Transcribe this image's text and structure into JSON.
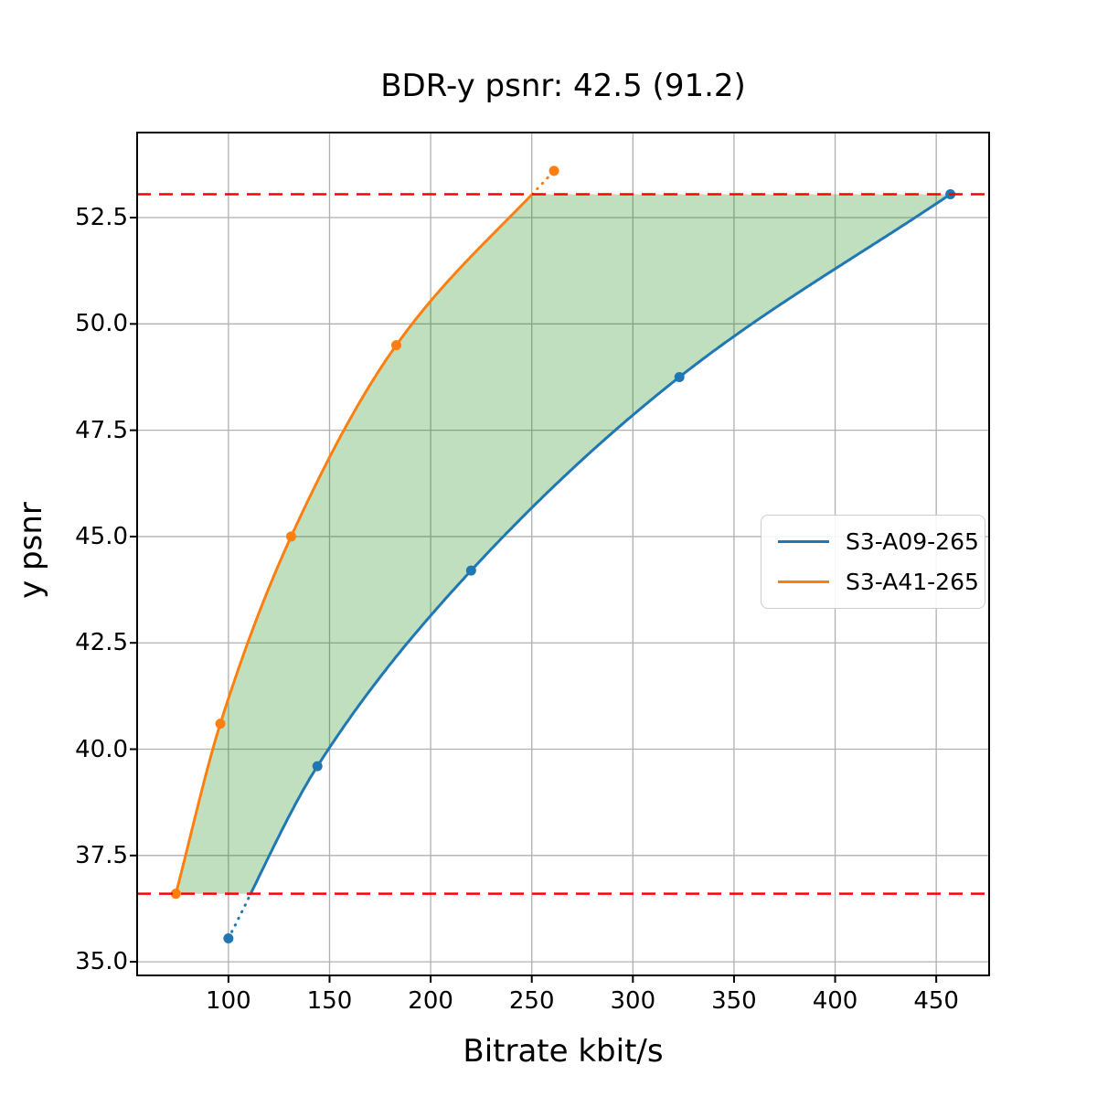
{
  "figure": {
    "title": "BDR-y psnr: 42.5 (91.2)",
    "xlabel": "Bitrate kbit/s",
    "ylabel": "y psnr"
  },
  "chart_data": {
    "type": "line",
    "title": "BDR-y psnr: 42.5 (91.2)",
    "xlabel": "Bitrate kbit/s",
    "ylabel": "y psnr",
    "xlim": [
      54.85,
      476.15
    ],
    "ylim": [
      34.68,
      54.5
    ],
    "x_ticks": [
      100,
      150,
      200,
      250,
      300,
      350,
      400,
      450
    ],
    "x_tick_labels": [
      "100",
      "150",
      "200",
      "250",
      "300",
      "350",
      "400",
      "450"
    ],
    "y_ticks": [
      35.0,
      37.5,
      40.0,
      42.5,
      45.0,
      47.5,
      50.0,
      52.5
    ],
    "y_tick_labels": [
      "35.0",
      "37.5",
      "40.0",
      "42.5",
      "45.0",
      "47.5",
      "50.0",
      "52.5"
    ],
    "grid": true,
    "grid_color": "#b0b0b0",
    "legend_position": "center-right",
    "series": [
      {
        "name": "S3-A09-265",
        "color": "#1f77b4",
        "marker": "circle",
        "x": [
          100,
          144,
          220,
          323,
          457
        ],
        "y": [
          35.55,
          39.6,
          44.2,
          48.75,
          53.05
        ]
      },
      {
        "name": "S3-A41-265",
        "color": "#ff7f0e",
        "marker": "circle",
        "x": [
          74,
          96,
          131,
          183,
          261
        ],
        "y": [
          36.6,
          40.6,
          45.0,
          49.5,
          53.6
        ]
      }
    ],
    "hlines": [
      {
        "y": 53.05,
        "color": "#ff0000",
        "style": "dashed"
      },
      {
        "y": 36.6,
        "color": "#ff0000",
        "style": "dashed"
      }
    ],
    "overlap_interval": {
      "y_min": 36.6,
      "y_max": 53.05
    },
    "fill_between": {
      "color": "#008000",
      "opacity": 0.25
    }
  }
}
